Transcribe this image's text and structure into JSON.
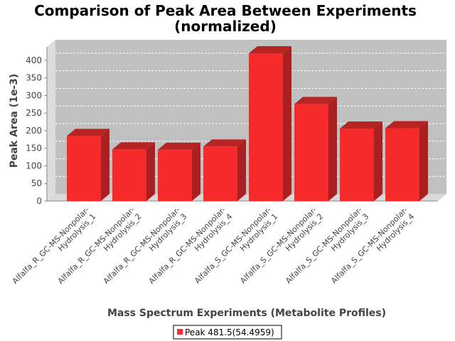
{
  "chart_data": {
    "type": "bar",
    "title_line1": "Comparison of Peak Area Between Experiments",
    "title_line2": "(normalized)",
    "xlabel": "Mass Spectrum Experiments (Metabolite Profiles)",
    "ylabel": "Peak Area (1e-3)",
    "ylim": [
      0,
      420
    ],
    "yticks": [
      0,
      50,
      100,
      150,
      200,
      250,
      300,
      350,
      400
    ],
    "grid": true,
    "legend_position": "bottom",
    "categories": [
      [
        "Alfalfa_R_GC-MS-Nonpolar-",
        "Hydrolysis_1"
      ],
      [
        "Alfalfa_R_GC-MS-Nonpolar-",
        "Hydrolysis_2"
      ],
      [
        "Alfalfa_R_GC-MS-Nonpolar-",
        "Hydrolysis_3"
      ],
      [
        "Alfalfa_R_GC-MS-Nonpolar-",
        "Hydrolysis_4"
      ],
      [
        "Alfalfa_S_GC-MS-Nonpolar-",
        "Hydrolysis_1"
      ],
      [
        "Alfalfa_S_GC-MS-Nonpolar-",
        "Hydrolysis_2"
      ],
      [
        "Alfalfa_S_GC-MS-Nonpolar-",
        "Hydrolysis_3"
      ],
      [
        "Alfalfa_S_GC-MS-Nonpolar-",
        "Hydrolysis_4"
      ]
    ],
    "series": [
      {
        "name": "Peak 481.5(54.4959)",
        "color": "#ff2a2a",
        "values": [
          185,
          147,
          146,
          155,
          420,
          276,
          206,
          207
        ]
      }
    ],
    "colors": {
      "plot_background": "#c0c0c0",
      "plot_side": "#dcdcdc",
      "plot_floor": "#d8d8d8",
      "bar_front": "#f62a2a",
      "bar_top": "#b82424",
      "bar_side": "#a82020",
      "grid": "#ffffff"
    }
  }
}
